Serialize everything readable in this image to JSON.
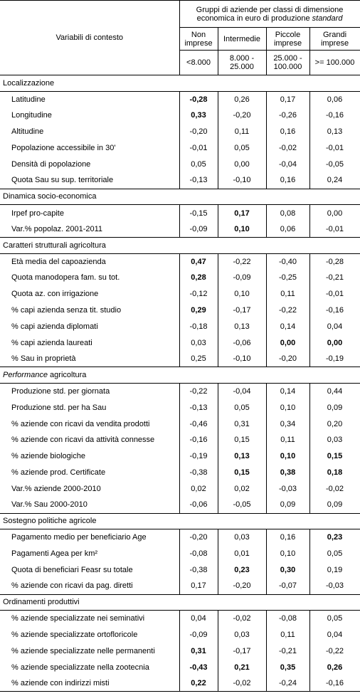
{
  "header": {
    "variables_label": "Variabili di contesto",
    "group_title_a": "Gruppi di aziende per classi di dimensione economica in euro di produzione",
    "group_title_b": "standard",
    "classes": [
      {
        "name": "Non imprese",
        "threshold": "<8.000"
      },
      {
        "name": "Intermedie",
        "threshold": "8.000 - 25.000"
      },
      {
        "name": "Piccole imprese",
        "threshold": "25.000 - 100.000"
      },
      {
        "name": "Grandi imprese",
        "threshold": ">= 100.000"
      }
    ]
  },
  "sections": [
    {
      "title": "Localizzazione",
      "title_italic_part": "",
      "rows": [
        {
          "label": "Latitudine",
          "values": [
            "-0,28",
            "0,26",
            "0,17",
            "0,06"
          ],
          "bold": [
            true,
            false,
            false,
            false
          ]
        },
        {
          "label": "Longitudine",
          "values": [
            "0,33",
            "-0,20",
            "-0,26",
            "-0,16"
          ],
          "bold": [
            true,
            false,
            false,
            false
          ]
        },
        {
          "label": "Altitudine",
          "values": [
            "-0,20",
            "0,11",
            "0,16",
            "0,13"
          ],
          "bold": [
            false,
            false,
            false,
            false
          ]
        },
        {
          "label": "Popolazione accessibile in 30'",
          "values": [
            "-0,01",
            "0,05",
            "-0,02",
            "-0,01"
          ],
          "bold": [
            false,
            false,
            false,
            false
          ]
        },
        {
          "label": "Densità di popolazione",
          "values": [
            "0,05",
            "0,00",
            "-0,04",
            "-0,05"
          ],
          "bold": [
            false,
            false,
            false,
            false
          ]
        },
        {
          "label": "Quota Sau su sup. territoriale",
          "values": [
            "-0,13",
            "-0,10",
            "0,16",
            "0,24"
          ],
          "bold": [
            false,
            false,
            false,
            false
          ]
        }
      ]
    },
    {
      "title": "Dinamica socio-economica",
      "title_italic_part": "",
      "rows": [
        {
          "label": "Irpef pro-capite",
          "values": [
            "-0,15",
            "0,17",
            "0,08",
            "0,00"
          ],
          "bold": [
            false,
            true,
            false,
            false
          ]
        },
        {
          "label": "Var.% popolaz. 2001-2011",
          "values": [
            "-0,09",
            "0,10",
            "0,06",
            "-0,01"
          ],
          "bold": [
            false,
            true,
            false,
            false
          ]
        }
      ]
    },
    {
      "title": "Caratteri strutturali agricoltura",
      "title_italic_part": "",
      "rows": [
        {
          "label": "Età media del capoazienda",
          "values": [
            "0,47",
            "-0,22",
            "-0,40",
            "-0,28"
          ],
          "bold": [
            true,
            false,
            false,
            false
          ]
        },
        {
          "label": "Quota manodopera fam. su tot.",
          "values": [
            "0,28",
            "-0,09",
            "-0,25",
            "-0,21"
          ],
          "bold": [
            true,
            false,
            false,
            false
          ]
        },
        {
          "label": "Quota az. con irrigazione",
          "values": [
            "-0,12",
            "0,10",
            "0,11",
            "-0,01"
          ],
          "bold": [
            false,
            false,
            false,
            false
          ]
        },
        {
          "label": "% capi azienda senza tit. studio",
          "values": [
            "0,29",
            "-0,17",
            "-0,22",
            "-0,16"
          ],
          "bold": [
            true,
            false,
            false,
            false
          ]
        },
        {
          "label": "% capi azienda diplomati",
          "values": [
            "-0,18",
            "0,13",
            "0,14",
            "0,04"
          ],
          "bold": [
            false,
            false,
            false,
            false
          ]
        },
        {
          "label": "% capi azienda laureati",
          "values": [
            "0,03",
            "-0,06",
            "0,00",
            "0,00"
          ],
          "bold": [
            false,
            false,
            true,
            true
          ]
        },
        {
          "label": "% Sau in proprietà",
          "values": [
            "0,25",
            "-0,10",
            "-0,20",
            "-0,19"
          ],
          "bold": [
            false,
            false,
            false,
            false
          ]
        }
      ]
    },
    {
      "title": " agricoltura",
      "title_italic_part": "Performance",
      "rows": [
        {
          "label": "Produzione std. per giornata",
          "values": [
            "-0,22",
            "-0,04",
            "0,14",
            "0,44"
          ],
          "bold": [
            false,
            false,
            false,
            false
          ]
        },
        {
          "label": "Produzione std. per ha Sau",
          "values": [
            "-0,13",
            "0,05",
            "0,10",
            "0,09"
          ],
          "bold": [
            false,
            false,
            false,
            false
          ]
        },
        {
          "label": "% aziende con ricavi da vendita prodotti",
          "values": [
            "-0,46",
            "0,31",
            "0,34",
            "0,20"
          ],
          "bold": [
            false,
            false,
            false,
            false
          ]
        },
        {
          "label": "% aziende con ricavi da attività connesse",
          "values": [
            "-0,16",
            "0,15",
            "0,11",
            "0,03"
          ],
          "bold": [
            false,
            false,
            false,
            false
          ]
        },
        {
          "label": "% aziende biologiche",
          "values": [
            "-0,19",
            "0,13",
            "0,10",
            "0,15"
          ],
          "bold": [
            false,
            true,
            true,
            true
          ]
        },
        {
          "label": "% aziende prod. Certificate",
          "values": [
            "-0,38",
            "0,15",
            "0,38",
            "0,18"
          ],
          "bold": [
            false,
            true,
            true,
            true
          ]
        },
        {
          "label": "Var.% aziende 2000-2010",
          "values": [
            "0,02",
            "0,02",
            "-0,03",
            "-0,02"
          ],
          "bold": [
            false,
            false,
            false,
            false
          ]
        },
        {
          "label": "Var.% Sau 2000-2010",
          "values": [
            "-0,06",
            "-0,05",
            "0,09",
            "0,09"
          ],
          "bold": [
            false,
            false,
            false,
            false
          ]
        }
      ]
    },
    {
      "title": "Sostegno politiche agricole",
      "title_italic_part": "",
      "rows": [
        {
          "label": "Pagamento medio per beneficiario Age",
          "values": [
            "-0,20",
            "0,03",
            "0,16",
            "0,23"
          ],
          "bold": [
            false,
            false,
            false,
            true
          ]
        },
        {
          "label": "Pagamenti Agea per km²",
          "values": [
            "-0,08",
            "0,01",
            "0,10",
            "0,05"
          ],
          "bold": [
            false,
            false,
            false,
            false
          ]
        },
        {
          "label": "Quota di beneficiari Feasr su totale",
          "values": [
            "-0,38",
            "0,23",
            "0,30",
            "0,19"
          ],
          "bold": [
            false,
            true,
            true,
            false
          ]
        },
        {
          "label": "% aziende con ricavi da pag. diretti",
          "values": [
            "0,17",
            "-0,20",
            "-0,07",
            "-0,03"
          ],
          "bold": [
            false,
            false,
            false,
            false
          ]
        }
      ]
    },
    {
      "title": "Ordinamenti produttivi",
      "title_italic_part": "",
      "rows": [
        {
          "label": "% aziende specializzate nei seminativi",
          "values": [
            "0,04",
            "-0,02",
            "-0,08",
            "0,05"
          ],
          "bold": [
            false,
            false,
            false,
            false
          ]
        },
        {
          "label": "% aziende specializzate ortofloricole",
          "values": [
            "-0,09",
            "0,03",
            "0,11",
            "0,04"
          ],
          "bold": [
            false,
            false,
            false,
            false
          ]
        },
        {
          "label": "% aziende specializzate nelle permanenti",
          "values": [
            "0,31",
            "-0,17",
            "-0,21",
            "-0,22"
          ],
          "bold": [
            true,
            false,
            false,
            false
          ]
        },
        {
          "label": "% aziende specializzate nella zootecnia",
          "values": [
            "-0,43",
            "0,21",
            "0,35",
            "0,26"
          ],
          "bold": [
            true,
            true,
            true,
            true
          ]
        },
        {
          "label": "% aziende con indirizzi misti",
          "values": [
            "0,22",
            "-0,02",
            "-0,24",
            "-0,16"
          ],
          "bold": [
            true,
            false,
            false,
            false
          ]
        }
      ]
    }
  ]
}
